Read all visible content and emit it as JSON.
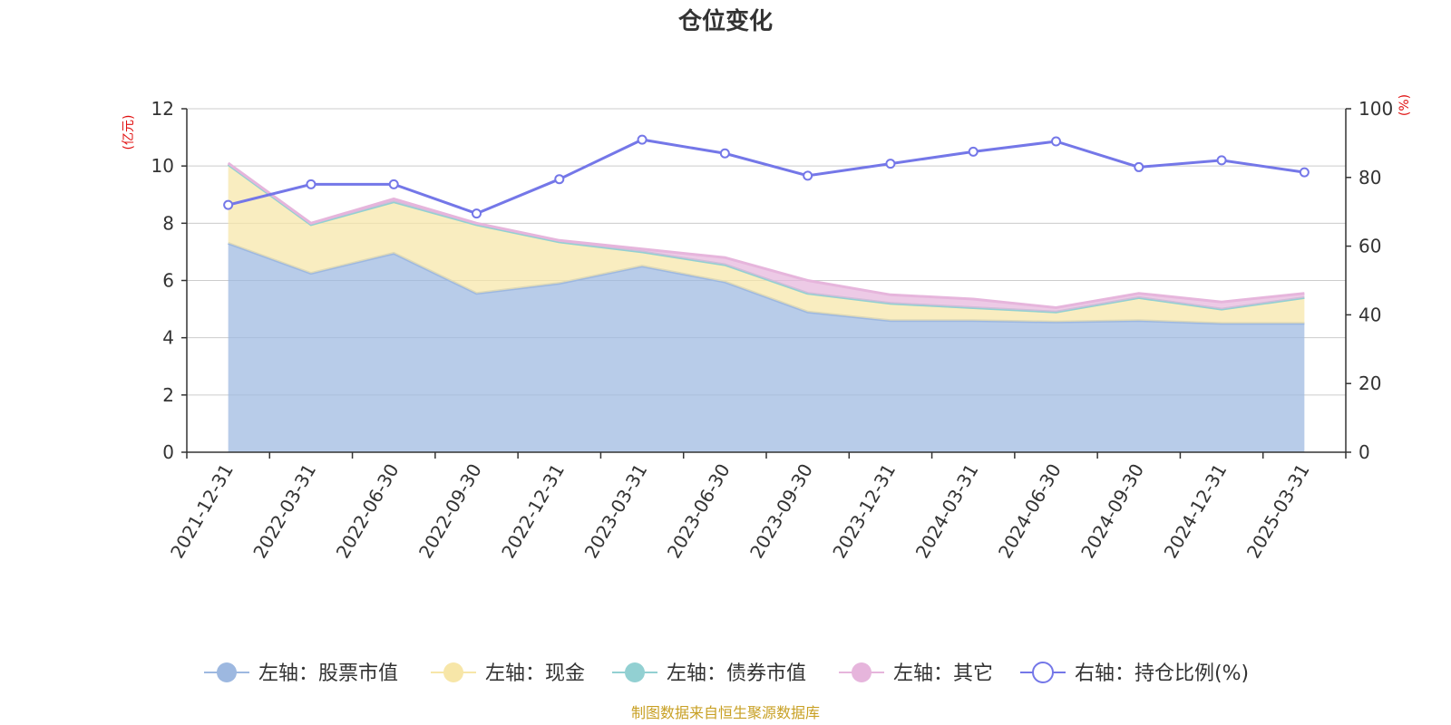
{
  "chart_data": {
    "type": "area",
    "title": "仓位变化",
    "source": "制图数据来自恒生聚源数据库",
    "x": [
      "2021-12-31",
      "2022-03-31",
      "2022-06-30",
      "2022-09-30",
      "2022-12-31",
      "2023-03-31",
      "2023-06-30",
      "2023-09-30",
      "2023-12-31",
      "2024-03-31",
      "2024-06-30",
      "2024-09-30",
      "2024-12-31",
      "2025-03-31"
    ],
    "left_axis": {
      "unit": "(亿元)",
      "ylim": [
        0,
        12
      ],
      "ticks": [
        "0",
        "2",
        "4",
        "6",
        "8",
        "10",
        "12"
      ]
    },
    "right_axis": {
      "unit": "(%)",
      "ylim": [
        0,
        100
      ],
      "ticks": [
        "0",
        "20",
        "40",
        "60",
        "80",
        "100"
      ]
    },
    "grid": true,
    "legend_position": "bottom",
    "series": [
      {
        "name": "左轴：股票市值",
        "axis": "left",
        "stacked": true,
        "color": "#9db8e0",
        "values": [
          7.3,
          6.25,
          6.95,
          5.55,
          5.9,
          6.5,
          5.95,
          4.9,
          4.6,
          4.6,
          4.55,
          4.6,
          4.5,
          4.5
        ]
      },
      {
        "name": "左轴：现金",
        "axis": "left",
        "stacked": true,
        "color": "#f7e6a8",
        "values": [
          2.75,
          1.7,
          1.8,
          2.4,
          1.45,
          0.5,
          0.6,
          0.65,
          0.6,
          0.45,
          0.35,
          0.8,
          0.5,
          0.9
        ]
      },
      {
        "name": "左轴：债券市值",
        "axis": "left",
        "stacked": true,
        "color": "#92d0d2",
        "values": [
          0,
          0,
          0,
          0,
          0,
          0,
          0,
          0,
          0,
          0,
          0,
          0,
          0,
          0
        ]
      },
      {
        "name": "左轴：其它",
        "axis": "left",
        "stacked": true,
        "color": "#e6b5dc",
        "values": [
          0.05,
          0.05,
          0.1,
          0.05,
          0.05,
          0.1,
          0.25,
          0.45,
          0.3,
          0.3,
          0.15,
          0.15,
          0.25,
          0.15
        ]
      },
      {
        "name": "右轴：持仓比例(%)",
        "axis": "right",
        "stacked": false,
        "color": "#7477e8",
        "values": [
          72,
          78,
          78,
          69.5,
          79.5,
          91,
          87,
          80.5,
          84,
          87.5,
          90.5,
          83,
          85,
          81.5
        ]
      }
    ]
  }
}
